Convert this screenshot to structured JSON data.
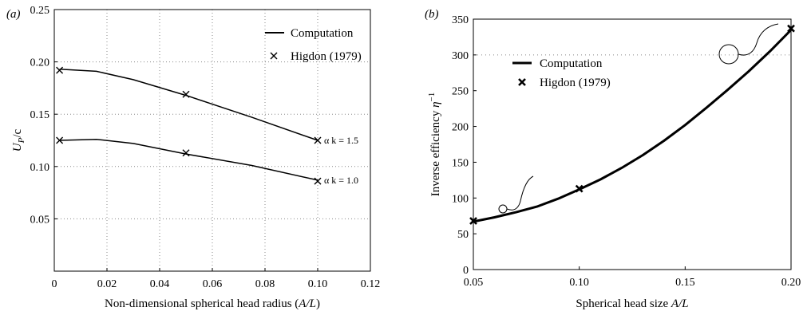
{
  "chart_data": [
    {
      "type": "line",
      "panel_label": "(a)",
      "xlabel_main": "Non-dimensional spherical head radius (",
      "xlabel_var": "A/L",
      "xlabel_close": ")",
      "ylabel_u": "U",
      "ylabel_sub": "P",
      "ylabel_rest": "/c",
      "xlim": [
        0,
        0.12
      ],
      "ylim": [
        0,
        0.25
      ],
      "x_ticks": [
        0,
        0.02,
        0.04,
        0.06,
        0.08,
        0.1,
        0.12
      ],
      "x_tick_labels": [
        "0",
        "0.02",
        "0.04",
        "0.06",
        "0.08",
        "0.10",
        "0.12"
      ],
      "y_ticks": [
        0.05,
        0.1,
        0.15,
        0.2,
        0.25
      ],
      "y_tick_labels": [
        "0.05",
        "0.10",
        "0.15",
        "0.20",
        "0.25"
      ],
      "grid": true,
      "legend": {
        "placement": "top-right",
        "computation": "Computation",
        "higdon": "Higdon (1979)"
      },
      "series": [
        {
          "annotation": "α k = 1.5",
          "x": [
            0.002,
            0.016,
            0.03,
            0.05,
            0.075,
            0.1
          ],
          "y": [
            0.193,
            0.191,
            0.183,
            0.168,
            0.147,
            0.125
          ],
          "higdon_x": [
            0.002,
            0.05,
            0.1
          ],
          "higdon_y": [
            0.192,
            0.169,
            0.125
          ]
        },
        {
          "annotation": "α k = 1.0",
          "x": [
            0.002,
            0.016,
            0.03,
            0.05,
            0.075,
            0.1
          ],
          "y": [
            0.125,
            0.126,
            0.122,
            0.112,
            0.101,
            0.087
          ],
          "higdon_x": [
            0.002,
            0.05,
            0.1
          ],
          "higdon_y": [
            0.125,
            0.113,
            0.086
          ]
        }
      ]
    },
    {
      "type": "line",
      "panel_label": "(b)",
      "xlabel_main": "Spherical head size ",
      "xlabel_var": "A/L",
      "ylabel_main": "Inverse efficiency ",
      "ylabel_var": "η",
      "ylabel_sup": "−1",
      "xlim": [
        0.05,
        0.2
      ],
      "ylim": [
        0,
        350
      ],
      "x_ticks": [
        0.05,
        0.1,
        0.15,
        0.2
      ],
      "x_tick_labels": [
        "0.05",
        "0.10",
        "0.15",
        "0.20"
      ],
      "y_ticks": [
        0,
        50,
        100,
        150,
        200,
        250,
        300,
        350
      ],
      "y_tick_labels": [
        "0",
        "50",
        "100",
        "150",
        "200",
        "250",
        "300",
        "350"
      ],
      "grid": true,
      "legend": {
        "placement": "top-left",
        "computation": "Computation",
        "higdon": "Higdon (1979)"
      },
      "computation": {
        "x": [
          0.05,
          0.06,
          0.07,
          0.08,
          0.09,
          0.1,
          0.11,
          0.12,
          0.13,
          0.14,
          0.15,
          0.16,
          0.17,
          0.18,
          0.19,
          0.2
        ],
        "y": [
          67,
          73,
          80,
          88,
          99,
          112,
          126,
          142,
          160,
          180,
          202,
          226,
          251,
          277,
          305,
          335
        ]
      },
      "higdon": {
        "x": [
          0.05,
          0.1,
          0.2
        ],
        "y": [
          68,
          113,
          337
        ]
      }
    }
  ]
}
